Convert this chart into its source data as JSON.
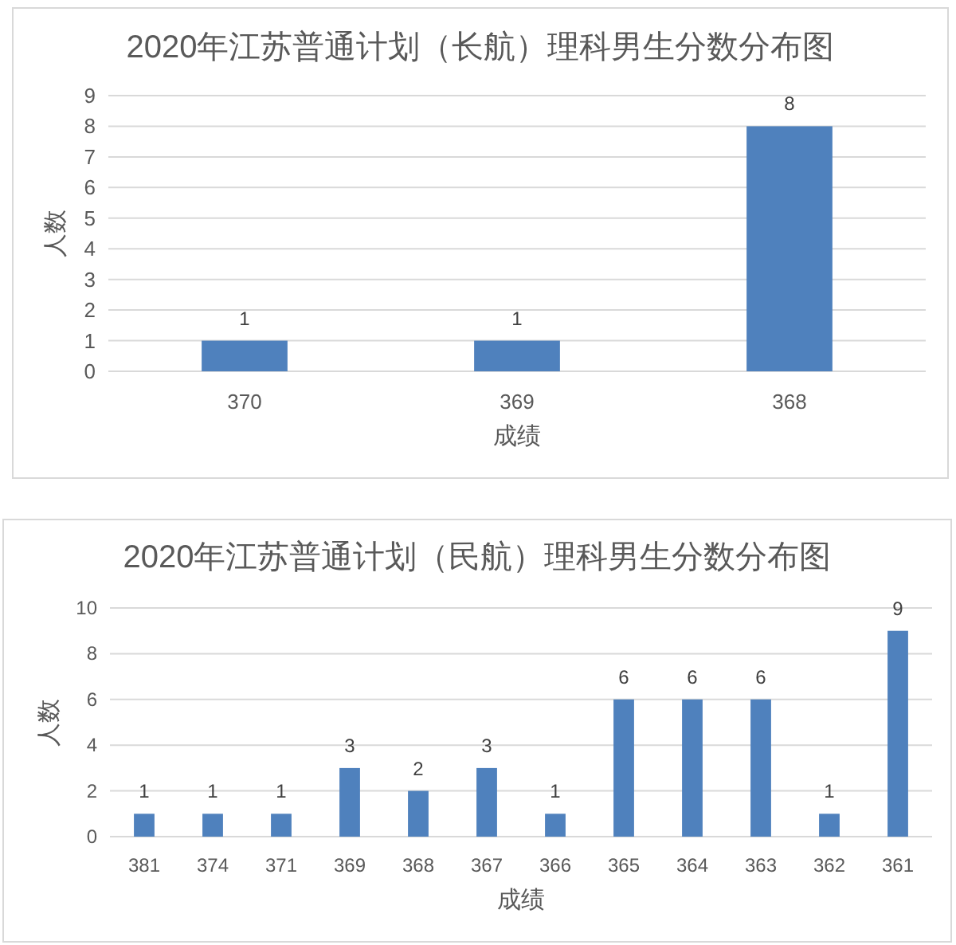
{
  "chart_data": [
    {
      "type": "bar",
      "title": "2020年江苏普通计划（长航）理科男生分数分布图",
      "xlabel": "成绩",
      "ylabel": "人数",
      "categories": [
        "370",
        "369",
        "368"
      ],
      "values": [
        1,
        1,
        8
      ],
      "color": "#4f81bd",
      "ylim": [
        0,
        9
      ],
      "yticks": [
        0,
        1,
        2,
        3,
        4,
        5,
        6,
        7,
        8,
        9
      ],
      "grid": "y",
      "data_labels": true
    },
    {
      "type": "bar",
      "title": "2020年江苏普通计划（民航）理科男生分数分布图",
      "xlabel": "成绩",
      "ylabel": "人数",
      "categories": [
        "381",
        "374",
        "371",
        "369",
        "368",
        "367",
        "366",
        "365",
        "364",
        "363",
        "362",
        "361"
      ],
      "values": [
        1,
        1,
        1,
        3,
        2,
        3,
        1,
        6,
        6,
        6,
        1,
        9
      ],
      "color": "#4f81bd",
      "ylim": [
        0,
        10
      ],
      "yticks": [
        0,
        2,
        4,
        6,
        8,
        10
      ],
      "grid": "y",
      "data_labels": true
    }
  ]
}
